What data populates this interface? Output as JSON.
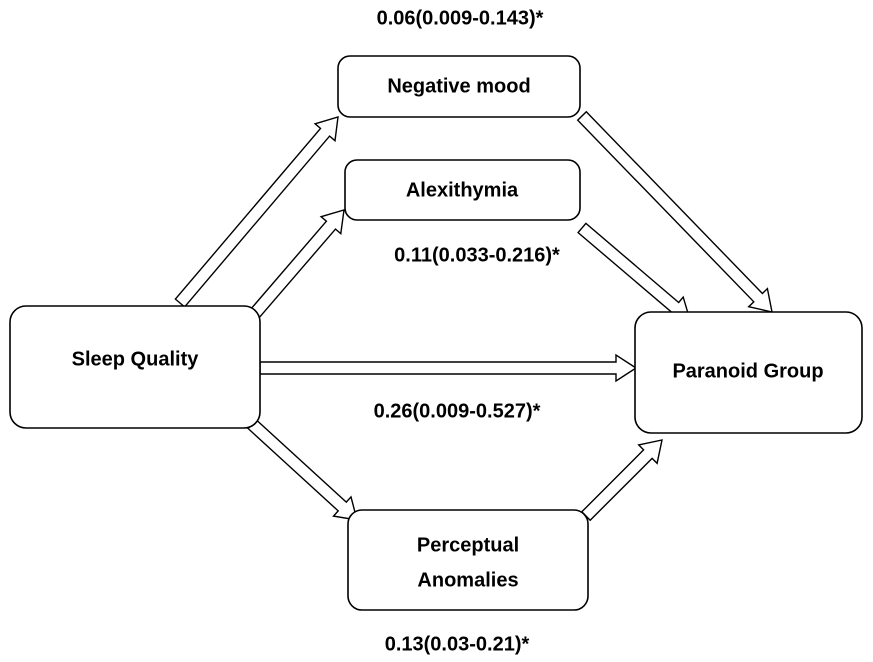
{
  "nodes": [
    {
      "lines": [
        "Sleep Quality"
      ]
    },
    {
      "lines": [
        "Negative mood"
      ]
    },
    {
      "lines": [
        "Alexithymia"
      ]
    },
    {
      "lines": [
        "Perceptual",
        "Anomalies"
      ]
    },
    {
      "lines": [
        "Paranoid Group"
      ]
    }
  ],
  "paths": [
    {
      "label": "0.06(0.009-0.143)*"
    },
    {
      "label": "0.11(0.033-0.216)*"
    },
    {
      "label": "0.26(0.009-0.527)*"
    },
    {
      "label": "0.13(0.03-0.21)*"
    }
  ]
}
